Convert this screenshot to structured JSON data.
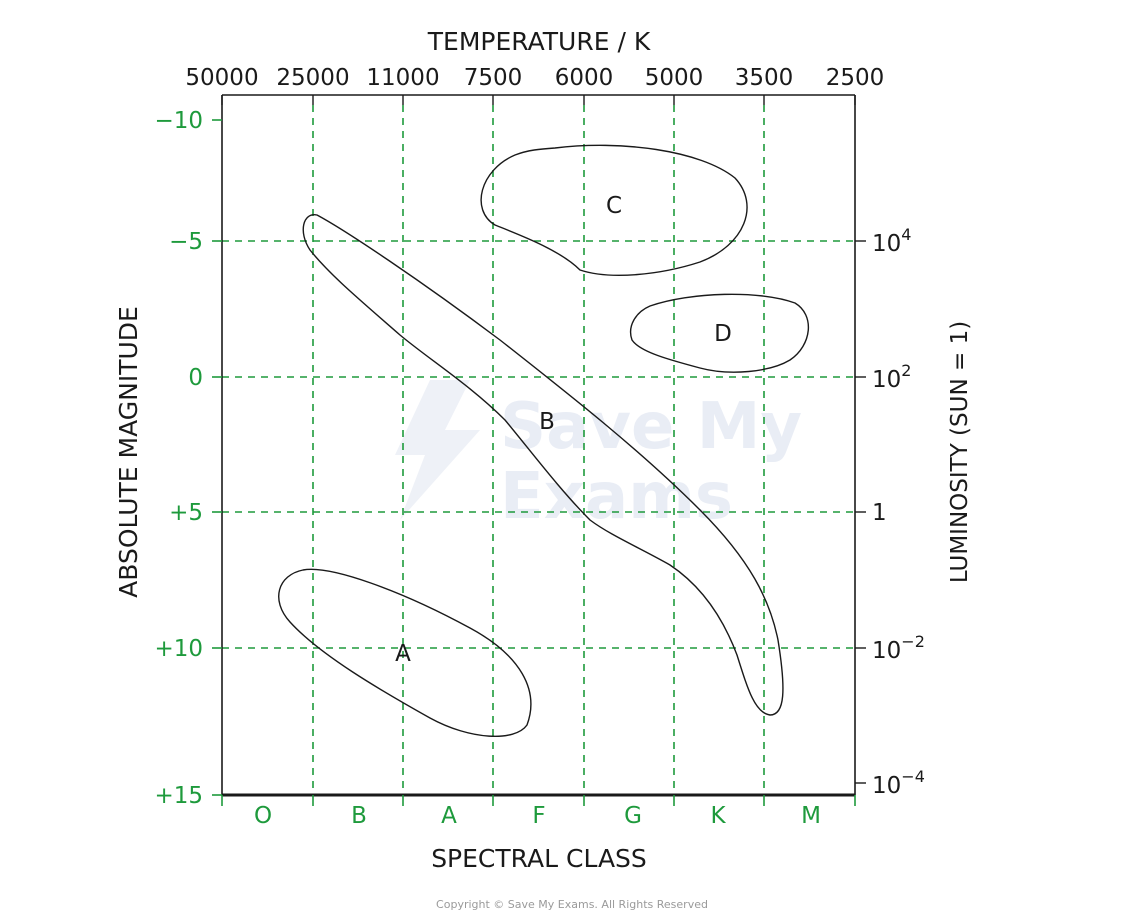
{
  "diagram": {
    "top_axis_title": "TEMPERATURE / K",
    "bottom_axis_title": "SPECTRAL CLASS",
    "left_axis_title": "ABSOLUTE MAGNITUDE",
    "right_axis_title": "LUMINOSITY (SUN = 1)",
    "temperature_ticks": [
      "50000",
      "25000",
      "11000",
      "7500",
      "6000",
      "5000",
      "3500",
      "2500"
    ],
    "magnitude_ticks": [
      "−10",
      "−5",
      "0",
      "+5",
      "+10",
      "+15"
    ],
    "luminosity_ticks": [
      {
        "base": "10",
        "exp": "4"
      },
      {
        "base": "10",
        "exp": "2"
      },
      {
        "base": "1",
        "exp": ""
      },
      {
        "base": "10",
        "exp": "−2"
      },
      {
        "base": "10",
        "exp": "−4"
      }
    ],
    "spectral_classes": [
      "O",
      "B",
      "A",
      "F",
      "G",
      "K",
      "M"
    ],
    "region_labels": {
      "a": "A",
      "b": "B",
      "c": "C",
      "d": "D"
    },
    "watermark": {
      "line1": "Save My",
      "line2": "Exams"
    },
    "copyright": "Copyright © Save My Exams. All Rights Reserved",
    "colors": {
      "grid": "#1e9a3c",
      "ink": "#1a1a1a"
    }
  }
}
